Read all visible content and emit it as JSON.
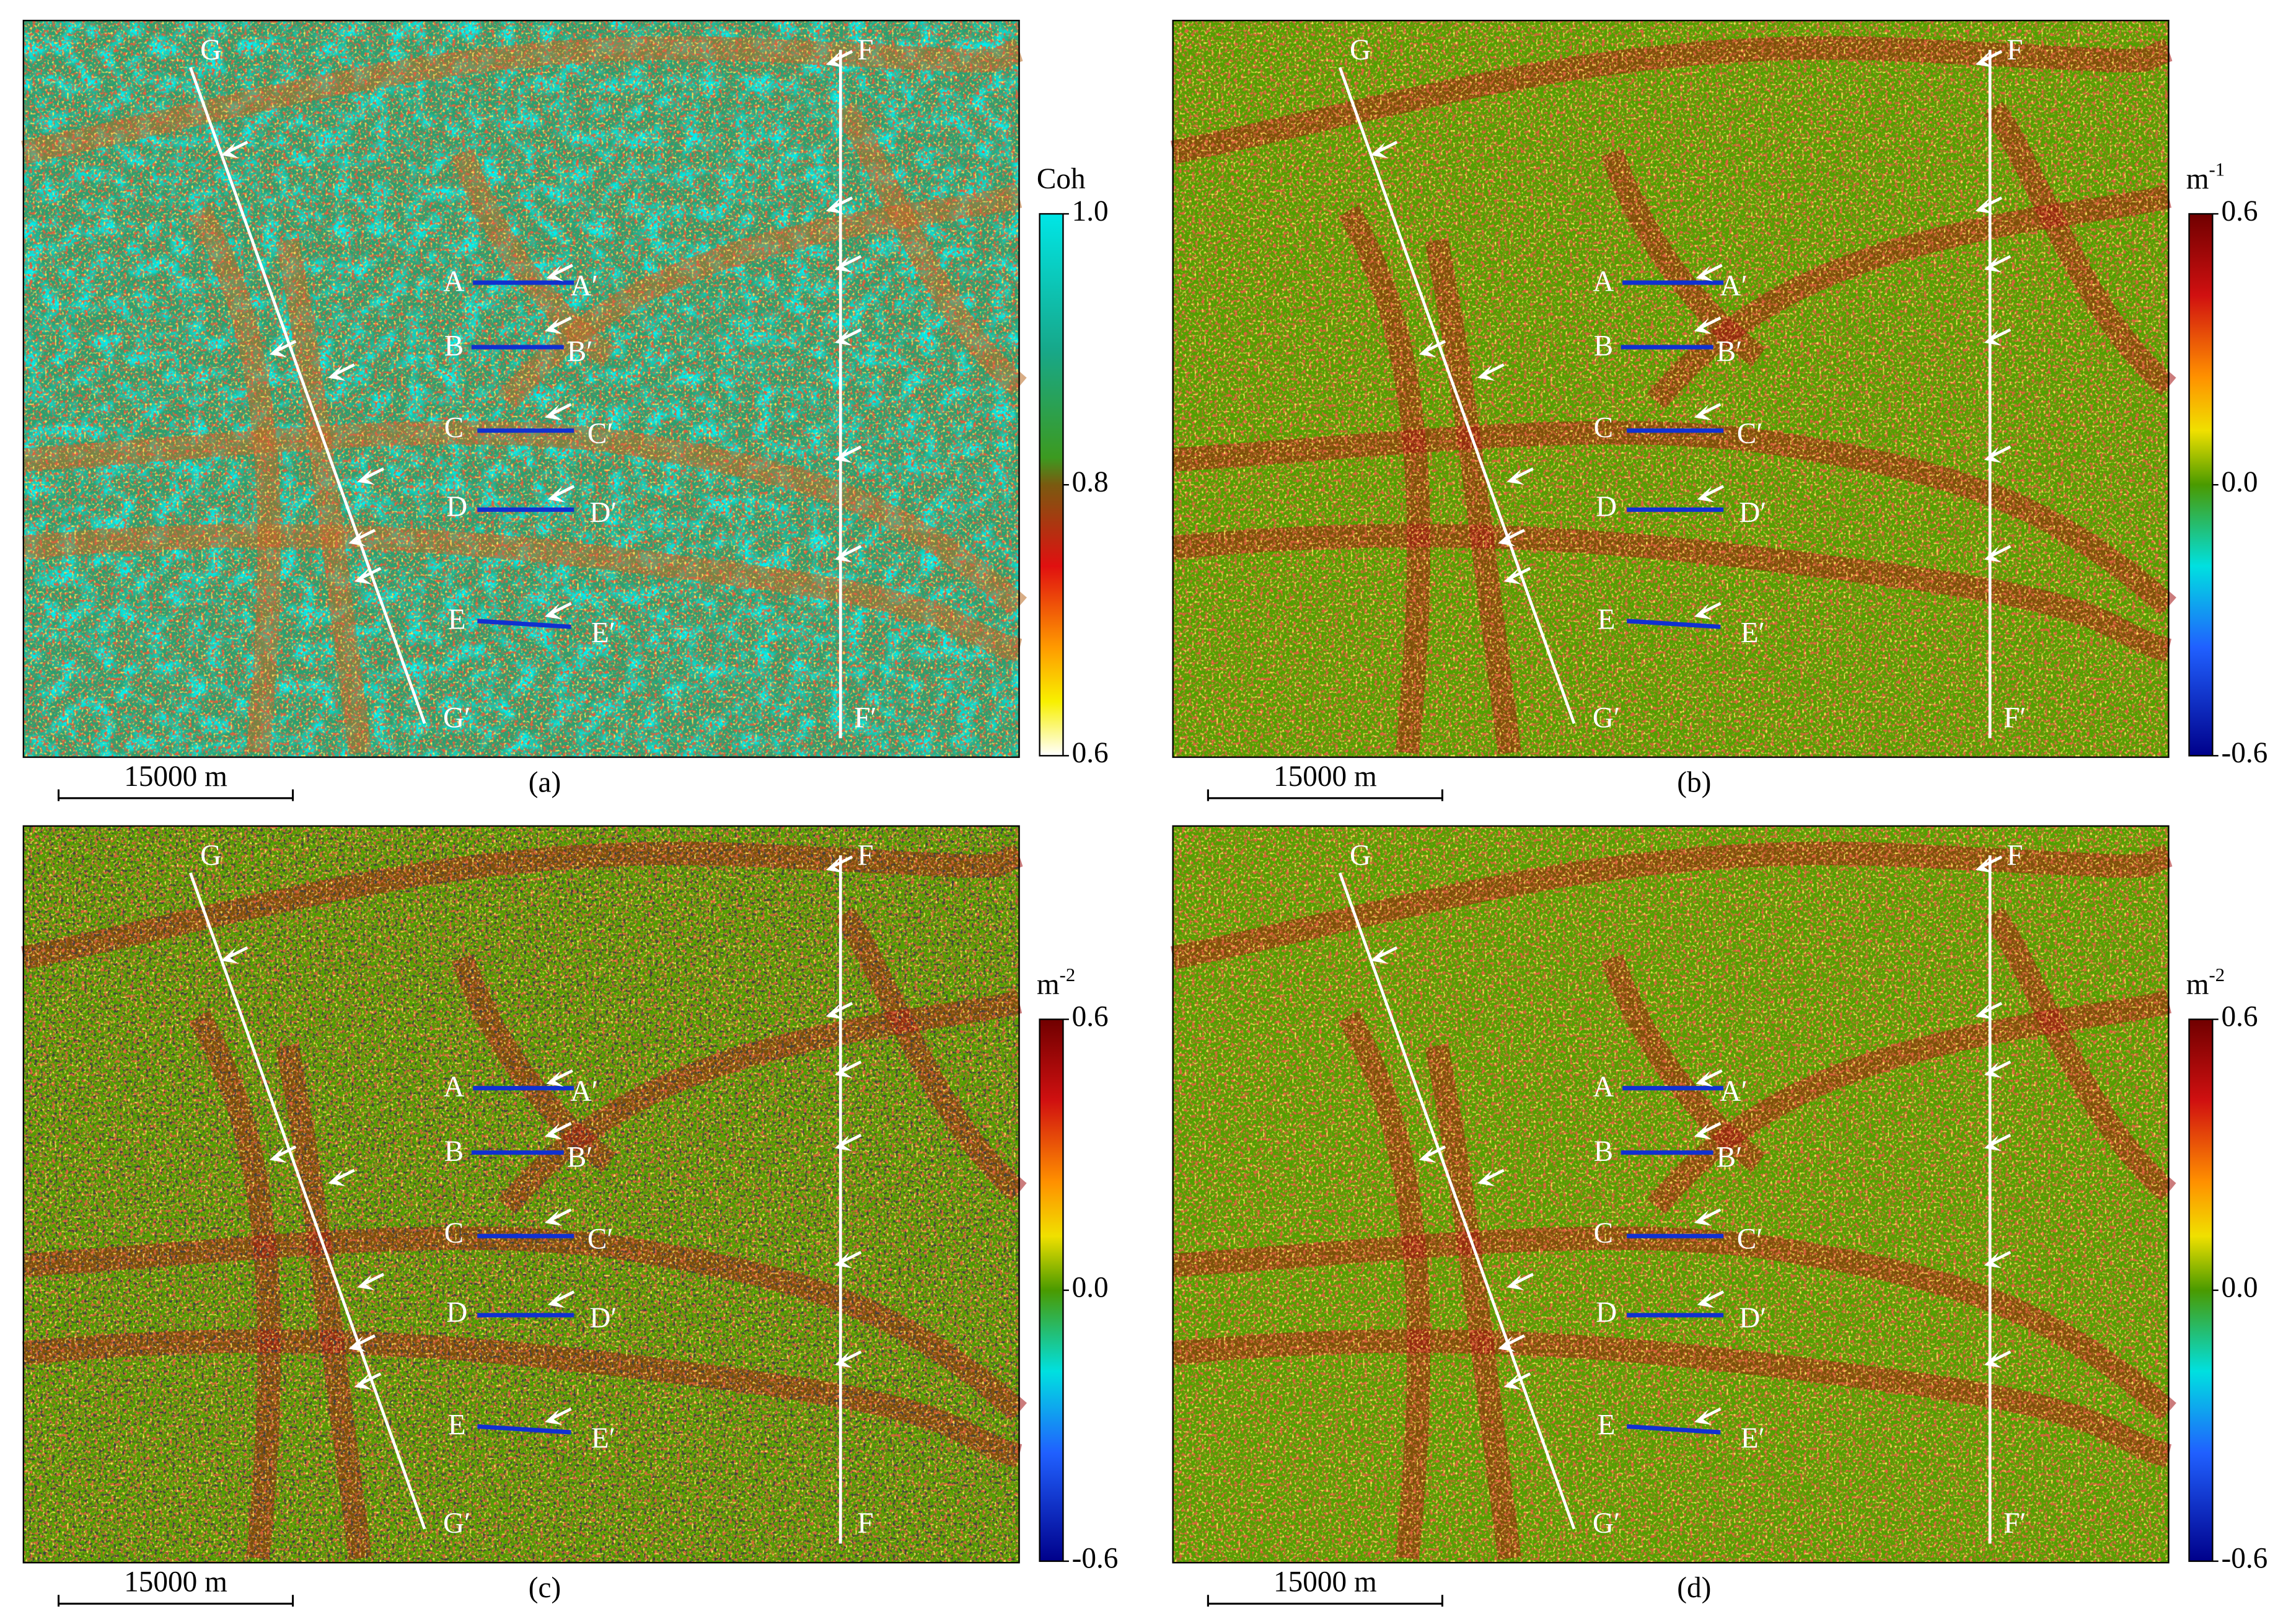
{
  "panels": [
    {
      "caption": "(a)",
      "scale_bar": "15000 m",
      "colorbar": {
        "unit": "Coh",
        "ticks": [
          "1.0",
          "0.8",
          "0.6"
        ]
      },
      "profiles": [
        "A",
        "A′",
        "B",
        "B′",
        "C",
        "C′",
        "D",
        "D′",
        "E",
        "E′",
        "G",
        "G′",
        "F",
        "F′"
      ]
    },
    {
      "caption": "(b)",
      "scale_bar": "15000 m",
      "colorbar": {
        "unit": "m",
        "unit_exponent": "-1",
        "ticks": [
          "0.6",
          "0.0",
          "-0.6"
        ]
      },
      "profiles": [
        "A",
        "A′",
        "B",
        "B′",
        "C",
        "C′",
        "D",
        "D′",
        "E",
        "E′",
        "G",
        "G′",
        "F",
        "F′"
      ]
    },
    {
      "caption": "(c)",
      "scale_bar": "15000 m",
      "colorbar": {
        "unit": "m",
        "unit_exponent": "-2",
        "ticks": [
          "0.6",
          "0.0",
          "-0.6"
        ]
      },
      "profiles": [
        "A",
        "A′",
        "B",
        "B′",
        "C",
        "C′",
        "D",
        "D′",
        "E",
        "E′",
        "G",
        "G′",
        "F",
        "F"
      ]
    },
    {
      "caption": "(d)",
      "scale_bar": "15000 m",
      "colorbar": {
        "unit": "m",
        "unit_exponent": "-2",
        "ticks": [
          "0.6",
          "0.0",
          "-0.6"
        ]
      },
      "profiles": [
        "A",
        "A′",
        "B",
        "B′",
        "C",
        "C′",
        "D",
        "D′",
        "E",
        "E′",
        "G",
        "G′",
        "F",
        "F′"
      ]
    }
  ]
}
